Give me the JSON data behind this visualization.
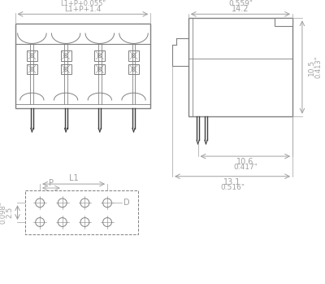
{
  "bg_color": "#ffffff",
  "line_color": "#808080",
  "dim_color": "#a0a0a0",
  "dark_line": "#404040",
  "dim_top_label1": "L1+P+1.4",
  "dim_top_label2": "L1+P+0.055\"",
  "dim_right_top1": "14.2",
  "dim_right_top2": "0.559\"",
  "dim_right_h1": "10.5",
  "dim_right_h2": "0.413\"",
  "dim_right_bot1": "10.6",
  "dim_right_bot2": "0.417\"",
  "dim_right_bot3": "13.1",
  "dim_right_bot4": "0.516\"",
  "dim_bot_left1": "2.5",
  "dim_bot_left2": "0.098\"",
  "dim_bot_L1": "L1",
  "dim_bot_P": "P",
  "dim_bot_D": "D",
  "n_pins": 4
}
